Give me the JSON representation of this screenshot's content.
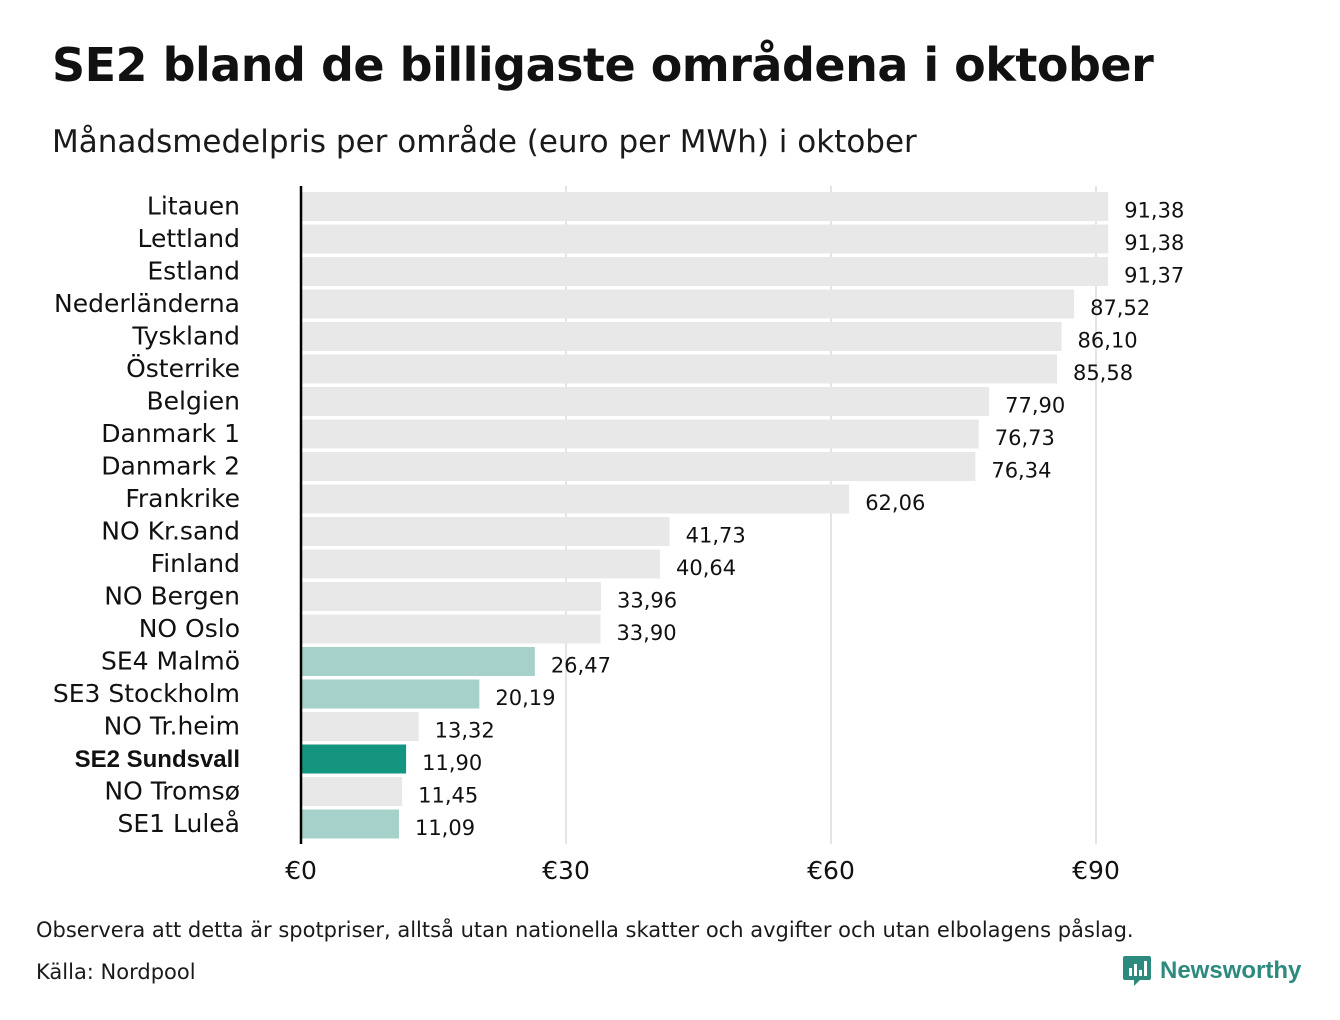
{
  "title": "SE2 bland de billigaste områdena i oktober",
  "subtitle": "Månadsmedelpris per område (euro per MWh) i oktober",
  "footnote": "Observera att detta är spotpriser, alltså utan nationella skatter och avgifter och utan elbolagens påslag.",
  "source": "Källa: Nordpool",
  "brand": "Newsworthy",
  "colors": {
    "default_bar": "#e8e8e8",
    "se_bar": "#a6d0ca",
    "highlight_bar": "#14957f",
    "brand": "#2d8a7e",
    "gridline": "#c8c8c8",
    "axis": "#000000"
  },
  "chart_data": {
    "type": "bar",
    "orientation": "horizontal",
    "xlim": [
      0,
      97
    ],
    "x_ticks": [
      0,
      30,
      60,
      90
    ],
    "x_tick_labels": [
      "€0",
      "€30",
      "€60",
      "€90"
    ],
    "grid": true,
    "categories": [
      "Litauen",
      "Lettland",
      "Estland",
      "Nederländerna",
      "Tyskland",
      "Österrike",
      "Belgien",
      "Danmark 1",
      "Danmark 2",
      "Frankrike",
      "NO Kr.sand",
      "Finland",
      "NO Bergen",
      "NO Oslo",
      "SE4 Malmö",
      "SE3 Stockholm",
      "NO Tr.heim",
      "SE2 Sundsvall",
      "NO Tromsø",
      "SE1 Luleå"
    ],
    "values": [
      91.38,
      91.38,
      91.37,
      87.52,
      86.1,
      85.58,
      77.9,
      76.73,
      76.34,
      62.06,
      41.73,
      40.64,
      33.96,
      33.9,
      26.47,
      20.19,
      13.32,
      11.9,
      11.45,
      11.09
    ],
    "value_labels": [
      "91,38",
      "91,38",
      "91,37",
      "87,52",
      "86,10",
      "85,58",
      "77,90",
      "76,73",
      "76,34",
      "62,06",
      "41,73",
      "40,64",
      "33,96",
      "33,90",
      "26,47",
      "20,19",
      "13,32",
      "11,90",
      "11,45",
      "11,09"
    ],
    "bar_style": [
      "default",
      "default",
      "default",
      "default",
      "default",
      "default",
      "default",
      "default",
      "default",
      "default",
      "default",
      "default",
      "default",
      "default",
      "se",
      "se",
      "default",
      "highlight",
      "default",
      "se"
    ],
    "highlighted_category": "SE2 Sundsvall"
  }
}
